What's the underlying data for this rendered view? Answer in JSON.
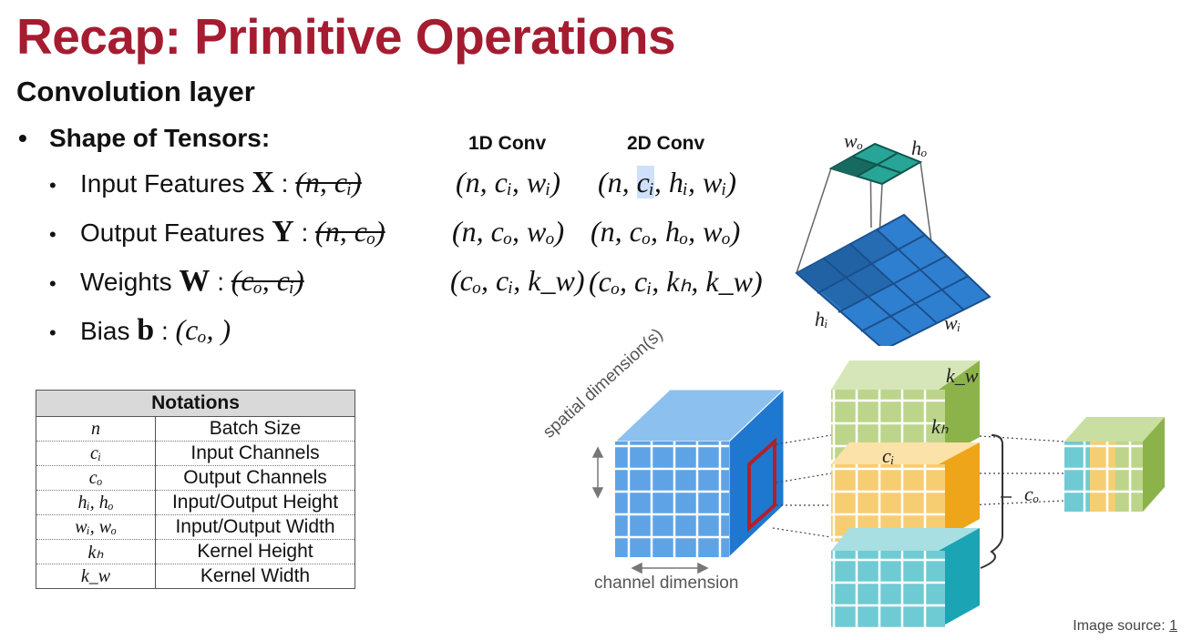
{
  "slide": {
    "title": "Recap: Primitive Operations",
    "subtitle": "Convolution layer",
    "section": "Shape of Tensors:",
    "col_1d": "1D Conv",
    "col_2d": "2D Conv"
  },
  "rows": [
    {
      "label": "Input Features",
      "symbol": "X",
      "old": "(n, cᵢ)",
      "conv1d": "(n, cᵢ, wᵢ)",
      "conv2d_a": "(n, ",
      "conv2d_hl": "cᵢ",
      "conv2d_b": ", hᵢ, wᵢ)"
    },
    {
      "label": "Output Features",
      "symbol": "Y",
      "old": "(n, cₒ)",
      "conv1d": "(n, cₒ, wₒ)",
      "conv2d": "(n, cₒ, hₒ, wₒ)"
    },
    {
      "label": "Weights",
      "symbol": "W",
      "old": "(cₒ, cᵢ)",
      "conv1d": "(cₒ, cᵢ, k_w)",
      "conv2d": "(cₒ, cᵢ, kₕ, k_w)"
    },
    {
      "label": "Bias",
      "symbol": "b",
      "value": "(cₒ, )"
    }
  ],
  "notations": {
    "header": "Notations",
    "rows": [
      {
        "sym": "n",
        "desc": "Batch Size"
      },
      {
        "sym": "cᵢ",
        "desc": "Input Channels"
      },
      {
        "sym": "cₒ",
        "desc": "Output Channels"
      },
      {
        "sym": "hᵢ, hₒ",
        "desc": "Input/Output Height"
      },
      {
        "sym": "wᵢ, wₒ",
        "desc": "Input/Output Width"
      },
      {
        "sym": "kₕ",
        "desc": "Kernel Height"
      },
      {
        "sym": "k_w",
        "desc": "Kernel Width"
      }
    ]
  },
  "diagram_top": {
    "w_o": "wₒ",
    "h_o": "hₒ",
    "h_i": "hᵢ",
    "w_i": "wᵢ"
  },
  "diagram_bottom": {
    "spatial_label": "spatial dimension(s)",
    "channel_label": "channel dimension",
    "k_w": "k_w",
    "k_h": "kₕ",
    "c_i": "cᵢ",
    "c_o": "cₒ"
  },
  "source": {
    "text": "Image source: ",
    "link": "1"
  },
  "colors": {
    "title": "#a51c30",
    "input_blue": "#3a8ee0",
    "green": "#97bd5a",
    "orange": "#f3b535",
    "teal": "#3bb7c4",
    "kernel_red": "#b0202c"
  }
}
